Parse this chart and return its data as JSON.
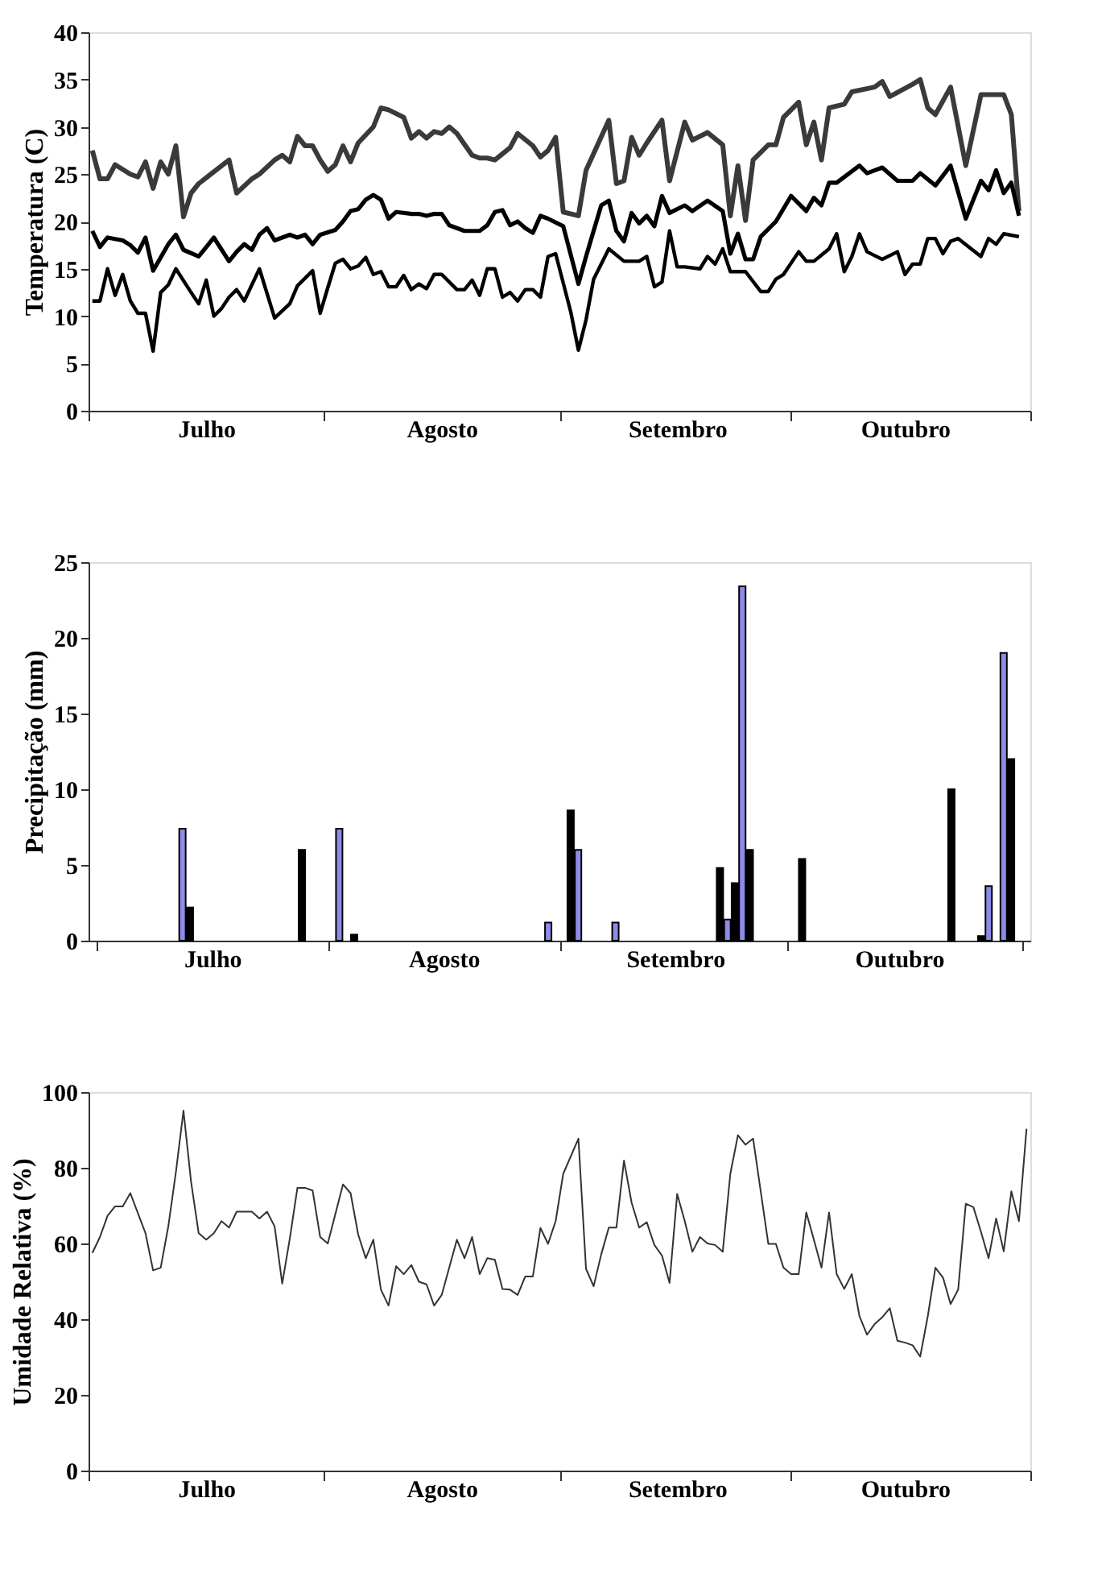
{
  "chart_data": [
    {
      "type": "line",
      "ylabel": "Temperatura (C)",
      "categories": [
        null,
        null,
        null,
        null,
        null,
        null,
        null,
        null,
        null,
        null,
        null,
        null,
        null,
        null,
        null,
        "Julho",
        null,
        null,
        null,
        null,
        null,
        null,
        null,
        null,
        null,
        null,
        null,
        null,
        null,
        null,
        null,
        null,
        null,
        null,
        null,
        null,
        null,
        null,
        null,
        null,
        null,
        null,
        null,
        null,
        null,
        null,
        "Agosto",
        null,
        null,
        null,
        null,
        null,
        null,
        null,
        null,
        null,
        null,
        null,
        null,
        null,
        null,
        null,
        null,
        null,
        null,
        null,
        null,
        null,
        null,
        null,
        null,
        null,
        null,
        null,
        null,
        null,
        null,
        "Setembro",
        null,
        null,
        null,
        null,
        null,
        null,
        null,
        null,
        null,
        null,
        null,
        null,
        null,
        null,
        null,
        null,
        null,
        null,
        null,
        null,
        null,
        null,
        null,
        null,
        null,
        null,
        null,
        null,
        null,
        "Outubro",
        null,
        null,
        null,
        null,
        null,
        null,
        null,
        null,
        null,
        null,
        null,
        null,
        null,
        null,
        null,
        null
      ],
      "ylim": [
        0,
        40
      ],
      "yticks": [
        0,
        5,
        10,
        15,
        20,
        25,
        30,
        35,
        40
      ],
      "marker": "none",
      "line_style": "solid",
      "series": [
        {
          "color": "#3a3a3a",
          "values": [
            27.5,
            24.5,
            24.5,
            26,
            null,
            25,
            24.7,
            26.3,
            23.5,
            26.3,
            25,
            28,
            20.5,
            23,
            24,
            null,
            null,
            null,
            26.5,
            23,
            null,
            24.5,
            25,
            null,
            26.5,
            27,
            26.3,
            29,
            28,
            28,
            26.5,
            25.3,
            26,
            28,
            26.3,
            28.3,
            null,
            30,
            32,
            31.8,
            null,
            31,
            28.8,
            29.5,
            28.8,
            29.5,
            29.3,
            30,
            29.3,
            null,
            27,
            26.7,
            26.7,
            26.5,
            null,
            27.8,
            29.3,
            null,
            28,
            26.8,
            27.5,
            28.9,
            21,
            null,
            20.6,
            25.4,
            null,
            null,
            30.7,
            24,
            24.3,
            28.9,
            27,
            28.3,
            null,
            30.7,
            24.3,
            null,
            30.5,
            28.6,
            null,
            29.4,
            null,
            28.1,
            20.6,
            25.9,
            20.1,
            26.5,
            null,
            28.1,
            28.1,
            31,
            null,
            32.6,
            28.1,
            30.5,
            26.5,
            32,
            null,
            32.4,
            33.7,
            null,
            null,
            34.2,
            34.8,
            33.2,
            null,
            null,
            34.5,
            35,
            32,
            31.3,
            null,
            34.2,
            null,
            25.9,
            null,
            33.4,
            null,
            null,
            33.4,
            31.3,
            21.1,
            null
          ]
        },
        {
          "color": "#000000",
          "values": [
            19,
            17.3,
            18.3,
            null,
            18,
            17.5,
            16.7,
            18.3,
            14.8,
            null,
            17.6,
            18.6,
            17,
            null,
            16.3,
            null,
            18.3,
            null,
            15.8,
            16.8,
            17.6,
            17,
            18.6,
            19.3,
            18,
            null,
            18.6,
            18.3,
            18.6,
            17.6,
            18.6,
            null,
            19.1,
            20,
            21.1,
            21.3,
            22.3,
            22.8,
            22.3,
            20.3,
            21,
            null,
            20.8,
            20.8,
            20.6,
            20.8,
            20.8,
            19.6,
            19.3,
            19,
            null,
            19,
            19.6,
            21,
            21.2,
            19.6,
            20,
            19.3,
            18.8,
            20.6,
            20.3,
            null,
            19.5,
            null,
            13.4,
            16.3,
            null,
            21.7,
            22.2,
            19,
            17.9,
            20.9,
            19.8,
            20.6,
            19.5,
            22.7,
            20.9,
            null,
            21.7,
            21.1,
            null,
            22.2,
            null,
            21.1,
            16.6,
            18.7,
            16,
            16,
            18.4,
            null,
            20,
            null,
            22.7,
            null,
            21.1,
            22.5,
            21.7,
            24.1,
            24.1,
            null,
            null,
            25.9,
            25.1,
            null,
            25.7,
            null,
            24.3,
            null,
            24.3,
            25.1,
            null,
            23.8,
            null,
            25.9,
            null,
            20.3,
            null,
            24.3,
            23.3,
            25.4,
            23,
            24.1,
            20.6,
            null
          ]
        },
        {
          "color": "#000000",
          "values": [
            11.6,
            11.6,
            15,
            12.2,
            14.4,
            11.6,
            10.3,
            10.3,
            6.3,
            12.5,
            13.3,
            15,
            null,
            12.5,
            11.3,
            13.8,
            10,
            10.8,
            12,
            12.8,
            11.6,
            null,
            15,
            null,
            9.8,
            null,
            11.3,
            13.2,
            null,
            14.8,
            10.3,
            13,
            15.6,
            16,
            15,
            15.3,
            16.2,
            14.4,
            14.7,
            13.1,
            13.1,
            14.3,
            12.8,
            13.4,
            12.9,
            14.4,
            14.4,
            null,
            12.8,
            12.8,
            13.8,
            12.2,
            15,
            15,
            12,
            12.5,
            11.6,
            12.8,
            12.8,
            12,
            16.3,
            16.6,
            null,
            10.4,
            6.4,
            9.6,
            13.9,
            null,
            17.1,
            null,
            15.8,
            null,
            15.8,
            16.3,
            13.1,
            13.6,
            19,
            15.2,
            15.2,
            null,
            15,
            16.3,
            15.5,
            17.1,
            14.7,
            null,
            14.7,
            null,
            12.6,
            12.6,
            13.9,
            14.4,
            null,
            16.8,
            15.8,
            15.8,
            null,
            17.1,
            18.7,
            14.7,
            16.3,
            18.7,
            16.8,
            null,
            16,
            null,
            16.8,
            14.4,
            15.5,
            15.5,
            18.2,
            18.2,
            16.6,
            17.9,
            18.2,
            null,
            null,
            16.3,
            18.2,
            17.6,
            18.7,
            null,
            18.4,
            null
          ]
        }
      ]
    },
    {
      "type": "bar",
      "ylabel": "Precipitação (mm)",
      "categories": [
        null,
        null,
        null,
        null,
        null,
        null,
        null,
        null,
        null,
        null,
        null,
        null,
        null,
        null,
        null,
        "Julho",
        null,
        null,
        null,
        null,
        null,
        null,
        null,
        null,
        null,
        null,
        null,
        null,
        null,
        null,
        null,
        null,
        null,
        null,
        null,
        null,
        null,
        null,
        null,
        null,
        null,
        null,
        null,
        null,
        null,
        null,
        "Agosto",
        null,
        null,
        null,
        null,
        null,
        null,
        null,
        null,
        null,
        null,
        null,
        null,
        null,
        null,
        null,
        null,
        null,
        null,
        null,
        null,
        null,
        null,
        null,
        null,
        null,
        null,
        null,
        null,
        null,
        null,
        "Setembro",
        null,
        null,
        null,
        null,
        null,
        null,
        null,
        null,
        null,
        null,
        null,
        null,
        null,
        null,
        null,
        null,
        null,
        null,
        null,
        null,
        null,
        null,
        null,
        null,
        null,
        null,
        null,
        null,
        null,
        "Outubro",
        null,
        null,
        null,
        null,
        null,
        null,
        null,
        null,
        null,
        null,
        null,
        null,
        null,
        null,
        null,
        null
      ],
      "ylim": [
        0,
        25
      ],
      "yticks": [
        0,
        5,
        10,
        15,
        20,
        25
      ],
      "series": [
        {
          "color": "#8c8ce8",
          "values": [
            null,
            null,
            null,
            null,
            null,
            null,
            null,
            null,
            null,
            null,
            null,
            7.4,
            null,
            null,
            null,
            null,
            null,
            null,
            null,
            null,
            null,
            null,
            null,
            null,
            null,
            null,
            null,
            null,
            null,
            null,
            null,
            null,
            7.4,
            null,
            null,
            null,
            null,
            null,
            null,
            null,
            null,
            null,
            null,
            null,
            null,
            null,
            null,
            null,
            null,
            null,
            null,
            null,
            null,
            null,
            null,
            null,
            null,
            null,
            null,
            null,
            1.2,
            null,
            null,
            null,
            6.0,
            null,
            null,
            null,
            null,
            1.2,
            null,
            null,
            null,
            null,
            null,
            null,
            null,
            null,
            null,
            null,
            null,
            null,
            null,
            null,
            1.4,
            null,
            23.4,
            null,
            null,
            null,
            null,
            null,
            null,
            null,
            null,
            null,
            null,
            null,
            null,
            null,
            null,
            null,
            null,
            null,
            null,
            null,
            null,
            null,
            null,
            null,
            null,
            null,
            null,
            null,
            null,
            null,
            null,
            null,
            null,
            3.6,
            null,
            19.0,
            null,
            null
          ]
        },
        {
          "color": "#000000",
          "values": [
            null,
            null,
            null,
            null,
            null,
            null,
            null,
            null,
            null,
            null,
            null,
            null,
            2.2,
            null,
            null,
            null,
            null,
            null,
            null,
            null,
            null,
            null,
            null,
            null,
            null,
            null,
            null,
            6.0,
            null,
            null,
            null,
            null,
            null,
            null,
            0.4,
            null,
            null,
            null,
            null,
            null,
            null,
            null,
            null,
            null,
            null,
            null,
            null,
            null,
            null,
            null,
            null,
            null,
            null,
            null,
            null,
            null,
            null,
            null,
            null,
            null,
            null,
            null,
            null,
            8.6,
            null,
            null,
            null,
            null,
            null,
            null,
            null,
            null,
            null,
            null,
            null,
            null,
            null,
            null,
            null,
            null,
            null,
            null,
            null,
            4.8,
            null,
            3.8,
            null,
            6.0,
            null,
            null,
            null,
            null,
            null,
            null,
            5.4,
            null,
            null,
            null,
            null,
            null,
            null,
            null,
            null,
            null,
            null,
            null,
            null,
            null,
            null,
            null,
            null,
            null,
            null,
            null,
            10.0,
            null,
            null,
            null,
            0.3,
            null,
            null,
            null,
            12.0,
            null
          ]
        }
      ]
    },
    {
      "type": "line",
      "ylabel": "Umidade Relativa (%)",
      "categories": [
        null,
        null,
        null,
        null,
        null,
        null,
        null,
        null,
        null,
        null,
        null,
        null,
        null,
        null,
        null,
        "Julho",
        null,
        null,
        null,
        null,
        null,
        null,
        null,
        null,
        null,
        null,
        null,
        null,
        null,
        null,
        null,
        null,
        null,
        null,
        null,
        null,
        null,
        null,
        null,
        null,
        null,
        null,
        null,
        null,
        null,
        null,
        "Agosto",
        null,
        null,
        null,
        null,
        null,
        null,
        null,
        null,
        null,
        null,
        null,
        null,
        null,
        null,
        null,
        null,
        null,
        null,
        null,
        null,
        null,
        null,
        null,
        null,
        null,
        null,
        null,
        null,
        null,
        null,
        "Setembro",
        null,
        null,
        null,
        null,
        null,
        null,
        null,
        null,
        null,
        null,
        null,
        null,
        null,
        null,
        null,
        null,
        null,
        null,
        null,
        null,
        null,
        null,
        null,
        null,
        null,
        null,
        null,
        null,
        null,
        "Outubro",
        null,
        null,
        null,
        null,
        null,
        null,
        null,
        null,
        null,
        null,
        null,
        null,
        null,
        null,
        null,
        null
      ],
      "ylim": [
        0,
        100
      ],
      "yticks": [
        0,
        20,
        40,
        60,
        80,
        100
      ],
      "marker": "none",
      "line_style": "solid",
      "series": [
        {
          "color": "#333333",
          "values": [
            57.5,
            61.7,
            67.3,
            69.8,
            69.8,
            73.3,
            68,
            62.7,
            52.9,
            53.6,
            64.5,
            78.8,
            95.1,
            76.3,
            62.7,
            61,
            62.7,
            65.9,
            64.2,
            68.4,
            null,
            68.4,
            66.6,
            68.4,
            64.5,
            49.4,
            61.3,
            74.7,
            74.7,
            74,
            61.7,
            60,
            null,
            75.6,
            73.3,
            62.4,
            56.1,
            61,
            47.8,
            43.6,
            54,
            51.9,
            54.3,
            49.9,
            49.2,
            43.6,
            46.4,
            null,
            61,
            56.1,
            61.7,
            51.9,
            56.1,
            55.7,
            48,
            47.8,
            46.4,
            51.3,
            51.3,
            64.1,
            59.9,
            65.9,
            78.4,
            null,
            87.7,
            53.3,
            48.7,
            57.1,
            64.2,
            64.2,
            81.9,
            70.8,
            64.2,
            65.6,
            59.6,
            56.8,
            49.6,
            73.1,
            65.9,
            57.8,
            61.7,
            60,
            59.6,
            57.8,
            78.4,
            88.6,
            86.1,
            87.7,
            73.8,
            59.9,
            59.9,
            53.6,
            51.9,
            51.9,
            68.2,
            61,
            53.6,
            68.2,
            51.9,
            48,
            51.9,
            40.8,
            35.9,
            38.7,
            40.5,
            42.9,
            34.3,
            33.8,
            33.1,
            30.1,
            40.8,
            53.6,
            51,
            44,
            47.8,
            70.5,
            69.6,
            63.1,
            56.1,
            66.6,
            57.9,
            73.8,
            65.9,
            90.3
          ]
        }
      ]
    }
  ]
}
